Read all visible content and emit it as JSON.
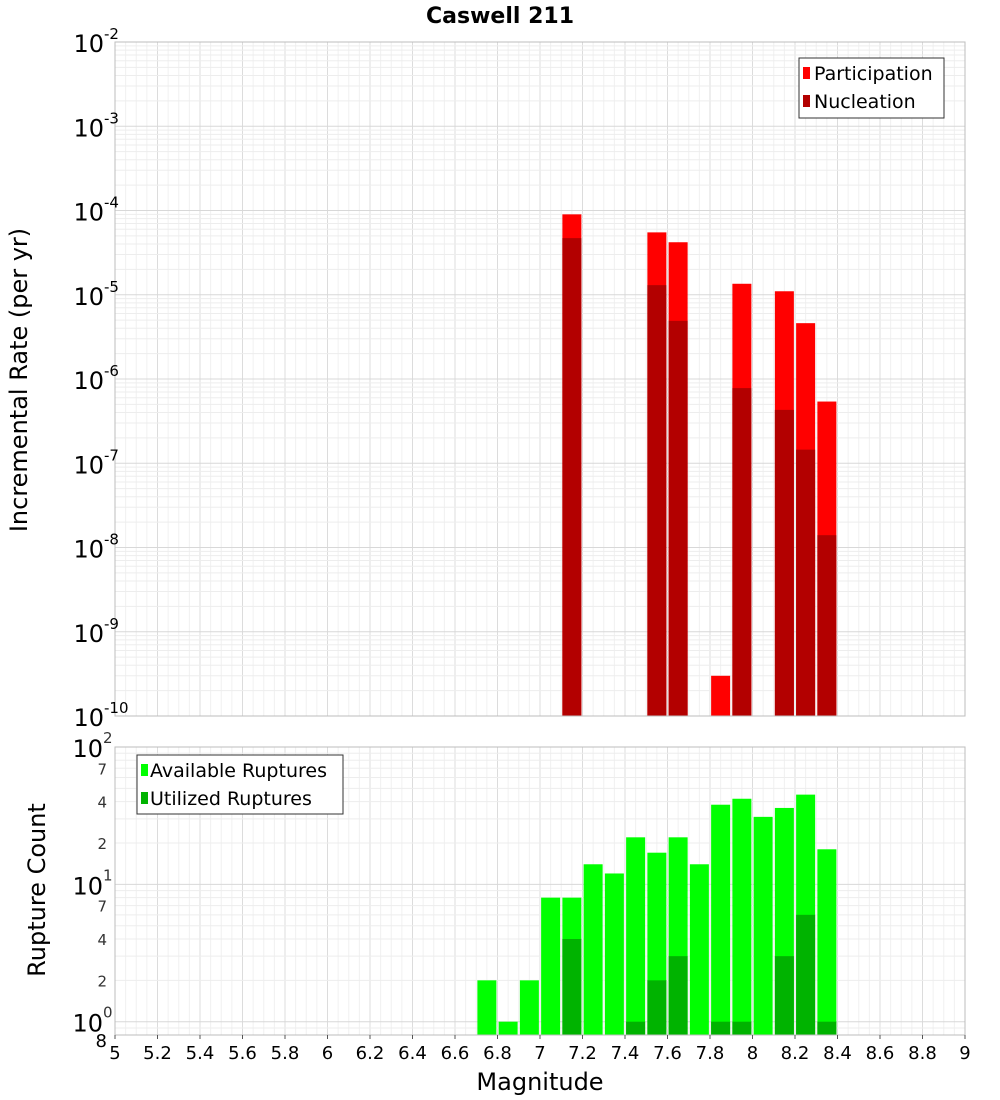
{
  "chart_data": [
    {
      "id": "rate",
      "type": "bar",
      "scale": "log",
      "title": "Caswell 211",
      "xlabel": "Magnitude",
      "ylabel": "Incremental Rate (per yr)",
      "xlim": [
        5,
        9
      ],
      "ylim": [
        1e-10,
        0.01
      ],
      "y_tick_exponents": [
        "-10",
        "-9",
        "-8",
        "-7",
        "-6",
        "-5",
        "-4",
        "-3",
        "-2"
      ],
      "legend": {
        "placement": "top-right",
        "entries": [
          "Participation",
          "Nucleation"
        ]
      },
      "series": [
        {
          "name": "Participation",
          "color": "#ff0000",
          "x": [
            7.15,
            7.55,
            7.65,
            7.85,
            7.95,
            8.15,
            8.25,
            8.35
          ],
          "values": [
            9e-05,
            5.5e-05,
            4.2e-05,
            3e-10,
            1.35e-05,
            1.1e-05,
            4.6e-06,
            5.4e-07
          ]
        },
        {
          "name": "Nucleation",
          "color": "#b30000",
          "x": [
            7.15,
            7.55,
            7.65,
            7.95,
            8.15,
            8.25,
            8.35
          ],
          "values": [
            4.7e-05,
            1.3e-05,
            4.9e-06,
            7.8e-07,
            4.3e-07,
            1.45e-07,
            1.4e-08
          ]
        }
      ]
    },
    {
      "id": "count",
      "type": "bar",
      "scale": "log",
      "xlabel": "Magnitude",
      "ylabel": "Rupture Count",
      "xlim": [
        5,
        9
      ],
      "ylim": [
        0.8,
        100
      ],
      "y_major_ticks": [
        {
          "base": "10",
          "exp": "0"
        },
        {
          "base": "10",
          "exp": "1"
        },
        {
          "base": "10",
          "exp": "2"
        }
      ],
      "y_minor_ticks": [
        {
          "value": 0.8,
          "label": "8"
        },
        {
          "value": 2,
          "label": "2"
        },
        {
          "value": 4,
          "label": "4"
        },
        {
          "value": 7,
          "label": "7"
        },
        {
          "value": 20,
          "label": "2"
        },
        {
          "value": 40,
          "label": "4"
        },
        {
          "value": 70,
          "label": "7"
        }
      ],
      "x_ticks": [
        5,
        5.2,
        5.4,
        5.6,
        5.8,
        6,
        6.2,
        6.4,
        6.6,
        6.8,
        7,
        7.2,
        7.4,
        7.6,
        7.8,
        8,
        8.2,
        8.4,
        8.6,
        8.8,
        9
      ],
      "x_tick_labels": [
        "5",
        "5.2",
        "5.4",
        "5.6",
        "5.8",
        "6",
        "6.2",
        "6.4",
        "6.6",
        "6.8",
        "7",
        "7.2",
        "7.4",
        "7.6",
        "7.8",
        "8",
        "8.2",
        "8.4",
        "8.6",
        "8.8",
        "9"
      ],
      "legend": {
        "placement": "top-left",
        "entries": [
          "Available Ruptures",
          "Utilized Ruptures"
        ]
      },
      "series": [
        {
          "name": "Available Ruptures",
          "color": "#00ff00",
          "x": [
            6.75,
            6.85,
            6.95,
            7.05,
            7.15,
            7.25,
            7.35,
            7.45,
            7.55,
            7.65,
            7.75,
            7.85,
            7.95,
            8.05,
            8.15,
            8.25,
            8.35
          ],
          "values": [
            2,
            1,
            2,
            8,
            8,
            14,
            12,
            22,
            17,
            22,
            14,
            38,
            42,
            31,
            36,
            45,
            18
          ]
        },
        {
          "name": "Utilized Ruptures",
          "color": "#00b300",
          "x": [
            7.15,
            7.45,
            7.55,
            7.65,
            7.85,
            7.95,
            8.15,
            8.25,
            8.35
          ],
          "values": [
            4,
            1,
            2,
            3,
            1,
            1,
            3,
            6,
            1
          ]
        }
      ]
    }
  ]
}
